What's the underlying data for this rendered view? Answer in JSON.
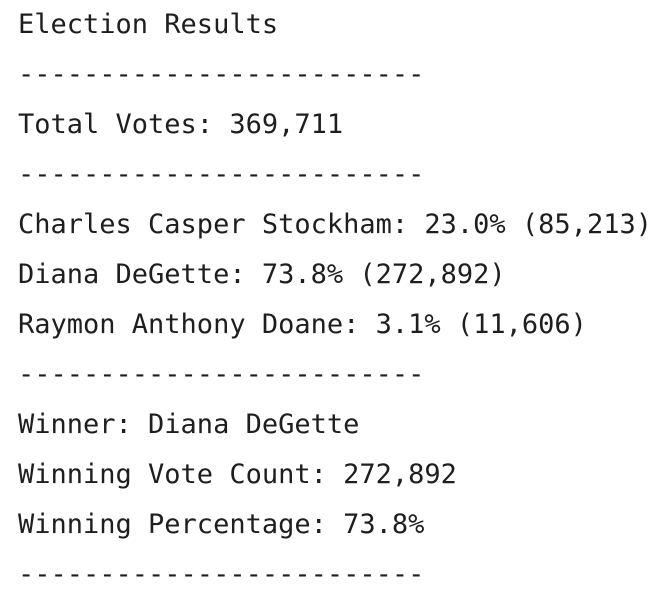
{
  "output": {
    "lines": [
      "Election Results",
      "-------------------------",
      "Total Votes: 369,711",
      "-------------------------",
      "Charles Casper Stockham: 23.0% (85,213)",
      "Diana DeGette: 73.8% (272,892)",
      "Raymon Anthony Doane: 3.1% (11,606)",
      "-------------------------",
      "Winner: Diana DeGette",
      "Winning Vote Count: 272,892",
      "Winning Percentage: 73.8%",
      "-------------------------"
    ]
  }
}
